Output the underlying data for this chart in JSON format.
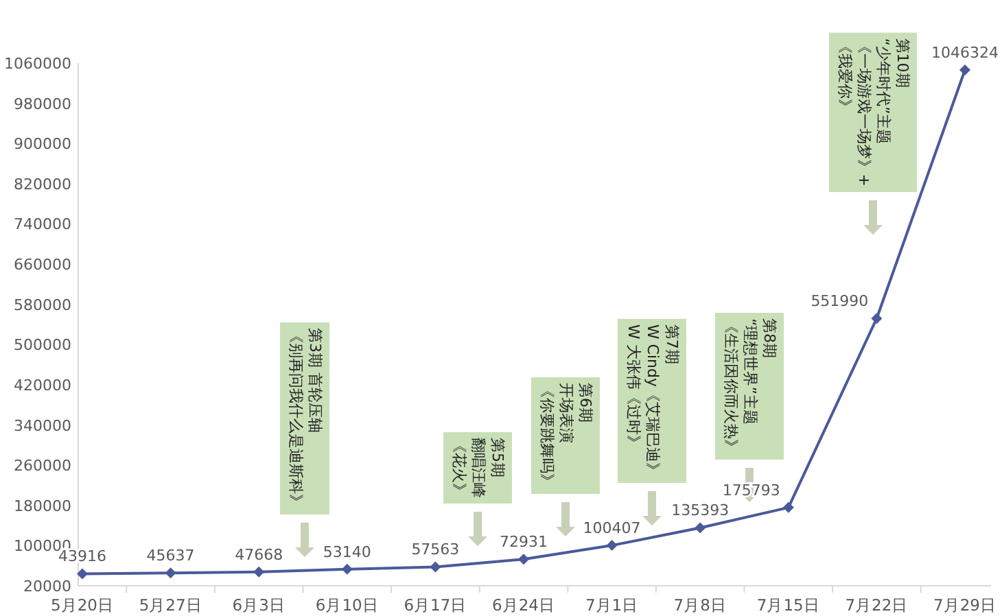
{
  "chart_data": {
    "type": "line",
    "categories": [
      "5月20日",
      "5月27日",
      "6月3日",
      "6月10日",
      "6月17日",
      "6月24日",
      "7月1日",
      "7月8日",
      "7月15日",
      "7月22日",
      "7月29日"
    ],
    "series": [
      {
        "color": "#4a5a9a",
        "values": [
          43916,
          45637,
          47668,
          53140,
          57563,
          72931,
          100407,
          135393,
          175793,
          551990,
          1046324
        ]
      }
    ],
    "ylim": [
      20000,
      1060000
    ],
    "yticks": [
      20000,
      100000,
      180000,
      260000,
      340000,
      420000,
      500000,
      580000,
      660000,
      740000,
      820000,
      900000,
      980000,
      1060000
    ],
    "marker": "diamond",
    "data_labels": true,
    "grid": false,
    "annotations": [
      "第3期 首轮压轴",
      "《别再问我什么是迪斯科》",
      "第5期",
      "翻唱汪峰",
      "《花火》",
      "第6期",
      "开场表演",
      "《你要跳舞吗》",
      "第7期",
      "W Cindy《艾瑞巴迪》",
      "W 大张伟《过时》",
      "第8期",
      "“理想世界”主题",
      "《生活因你而火热》",
      "第10期",
      "“少年时代”主题",
      "《一场游戏一场梦》+",
      "《我爱你》"
    ]
  }
}
